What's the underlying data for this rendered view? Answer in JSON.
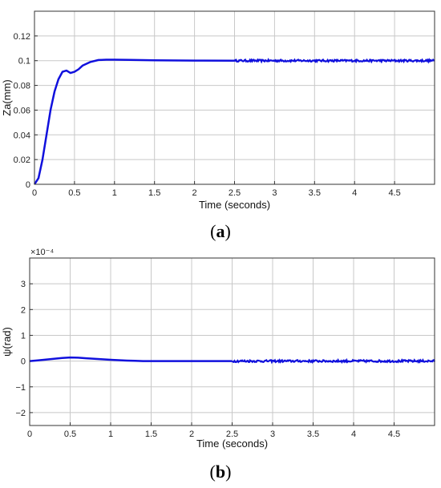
{
  "chart_data": [
    {
      "type": "line",
      "panel_label": "(a)",
      "panel_letter": "a",
      "xlabel": "Time (seconds)",
      "ylabel": "Za(mm)",
      "xlim": [
        0,
        5
      ],
      "ylim": [
        0,
        0.14
      ],
      "x_ticks": [
        "0",
        "0.5",
        "1",
        "1.5",
        "2",
        "2.5",
        "3",
        "3.5",
        "4",
        "4.5"
      ],
      "x_tick_values": [
        0,
        0.5,
        1,
        1.5,
        2,
        2.5,
        3,
        3.5,
        4,
        4.5
      ],
      "y_ticks": [
        "0",
        "0.02",
        "0.04",
        "0.06",
        "0.08",
        "0.1",
        "0.12"
      ],
      "y_tick_values": [
        0,
        0.02,
        0.04,
        0.06,
        0.08,
        0.1,
        0.12
      ],
      "grid": true,
      "color": "#1010dd",
      "series": [
        {
          "x": [
            0,
            0.05,
            0.1,
            0.15,
            0.2,
            0.25,
            0.3,
            0.35,
            0.4,
            0.45,
            0.5,
            0.55,
            0.6,
            0.7,
            0.8,
            0.9,
            1.0,
            1.2,
            1.5,
            2.0,
            2.5
          ],
          "y": [
            0,
            0.005,
            0.02,
            0.04,
            0.06,
            0.075,
            0.085,
            0.091,
            0.092,
            0.09,
            0.091,
            0.093,
            0.096,
            0.099,
            0.1005,
            0.1008,
            0.1008,
            0.1006,
            0.1003,
            0.1001,
            0.1
          ]
        }
      ],
      "noise_after": 2.5,
      "noise_level": 0.0008,
      "noise_center": 0.1
    },
    {
      "type": "line",
      "panel_label": "(b)",
      "panel_letter": "b",
      "xlabel": "Time (seconds)",
      "ylabel": "ψ(rad)",
      "exponent": "×10⁻⁴",
      "xlim": [
        0,
        5
      ],
      "ylim": [
        -2.5,
        4
      ],
      "x_ticks": [
        "0",
        "0.5",
        "1",
        "1.5",
        "2",
        "2.5",
        "3",
        "3.5",
        "4",
        "4.5"
      ],
      "x_tick_values": [
        0,
        0.5,
        1,
        1.5,
        2,
        2.5,
        3,
        3.5,
        4,
        4.5
      ],
      "y_ticks": [
        "−2",
        "−1",
        "0",
        "1",
        "2",
        "3"
      ],
      "y_tick_values": [
        -2,
        -1,
        0,
        1,
        2,
        3
      ],
      "grid": true,
      "color": "#1010dd",
      "series": [
        {
          "x": [
            0,
            0.1,
            0.2,
            0.3,
            0.4,
            0.5,
            0.6,
            0.7,
            0.8,
            0.9,
            1.0,
            1.1,
            1.2,
            1.3,
            1.4,
            1.6,
            2.0,
            2.5
          ],
          "y": [
            0,
            0.03,
            0.06,
            0.09,
            0.12,
            0.14,
            0.13,
            0.11,
            0.09,
            0.07,
            0.05,
            0.035,
            0.02,
            0.01,
            0.0,
            0.0,
            0.0,
            0.0
          ]
        }
      ],
      "noise_after": 2.5,
      "noise_level": 0.04,
      "noise_center": 0
    }
  ]
}
